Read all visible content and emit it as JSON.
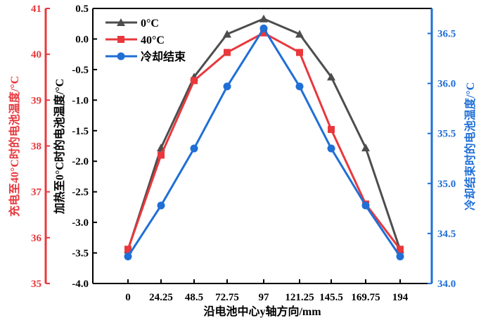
{
  "chart_data": {
    "type": "line",
    "x": [
      "0",
      "24.25",
      "48.5",
      "72.75",
      "97",
      "121.25",
      "145.5",
      "169.75",
      "194"
    ],
    "xlabel": "沿电池中心y轴方向/mm",
    "axes": {
      "far_left": {
        "label": "充电至40°C时的电池温度/°C",
        "range": [
          35,
          41
        ],
        "ticks": [
          "35",
          "36",
          "37",
          "38",
          "39",
          "40",
          "41"
        ],
        "color": "#e8383d"
      },
      "left": {
        "label": "加热至0°C时的电池温度/°C",
        "range": [
          -4.0,
          0.5
        ],
        "ticks": [
          "-4.0",
          "-3.5",
          "-3.0",
          "-2.5",
          "-2.0",
          "-1.5",
          "-1.0",
          "-0.5",
          "0.0",
          "0.5"
        ],
        "color": "#000000"
      },
      "right": {
        "label": "冷却结束时的电池温度/°C",
        "range": [
          34.0,
          36.75
        ],
        "ticks": [
          "34.0",
          "34.5",
          "35.0",
          "35.5",
          "36.0",
          "36.5"
        ],
        "color": "#1f6fd6"
      }
    },
    "series": [
      {
        "name": "0°C",
        "axis": "left",
        "marker": "triangle",
        "color": "#4d4d4d",
        "values": [
          -3.45,
          -1.78,
          -0.62,
          0.08,
          0.33,
          0.08,
          -0.62,
          -1.78,
          -3.45
        ]
      },
      {
        "name": "40°C",
        "axis": "left",
        "marker": "square",
        "color": "#e8383d",
        "values": [
          -3.44,
          -1.9,
          -0.68,
          -0.22,
          0.1,
          -0.22,
          -1.48,
          -2.7,
          -3.44
        ]
      },
      {
        "name": "冷却结束",
        "axis": "right",
        "marker": "circle",
        "color": "#1f6fd6",
        "values": [
          34.27,
          34.78,
          35.35,
          35.97,
          36.55,
          35.97,
          35.35,
          34.78,
          34.27
        ]
      }
    ],
    "legend": "top-left"
  }
}
